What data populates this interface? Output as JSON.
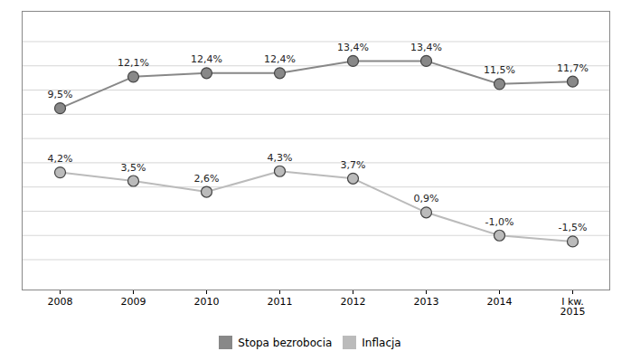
{
  "chart_data": {
    "type": "line",
    "categories": [
      "2008",
      "2009",
      "2010",
      "2011",
      "2012",
      "2013",
      "2014",
      "I kw.\n2015"
    ],
    "series": [
      {
        "name": "Stopa bezrobocia",
        "color": "#888888",
        "marker": "circle",
        "values": [
          9.5,
          12.1,
          12.4,
          12.4,
          13.4,
          13.4,
          11.5,
          11.7
        ],
        "value_labels": [
          "9,5%",
          "12,1%",
          "12,4%",
          "12,4%",
          "13,4%",
          "13,4%",
          "11,5%",
          "11,7%"
        ]
      },
      {
        "name": "Inflacja",
        "color": "#bbbbbb",
        "marker": "circle",
        "values": [
          4.2,
          3.5,
          2.6,
          4.3,
          3.7,
          0.9,
          -1.0,
          -1.5
        ],
        "value_labels": [
          "4,2%",
          "3,5%",
          "2,6%",
          "4,3%",
          "3,7%",
          "0,9%",
          "-1,0%",
          "-1,5%"
        ]
      }
    ],
    "ylim": [
      -5.5,
      17.5
    ],
    "yticks": [
      -3,
      -1,
      1,
      3,
      5,
      7,
      9,
      11,
      13,
      15
    ],
    "grid": true,
    "tick_labels": "x",
    "data_labels": true,
    "legend": "bottom"
  }
}
